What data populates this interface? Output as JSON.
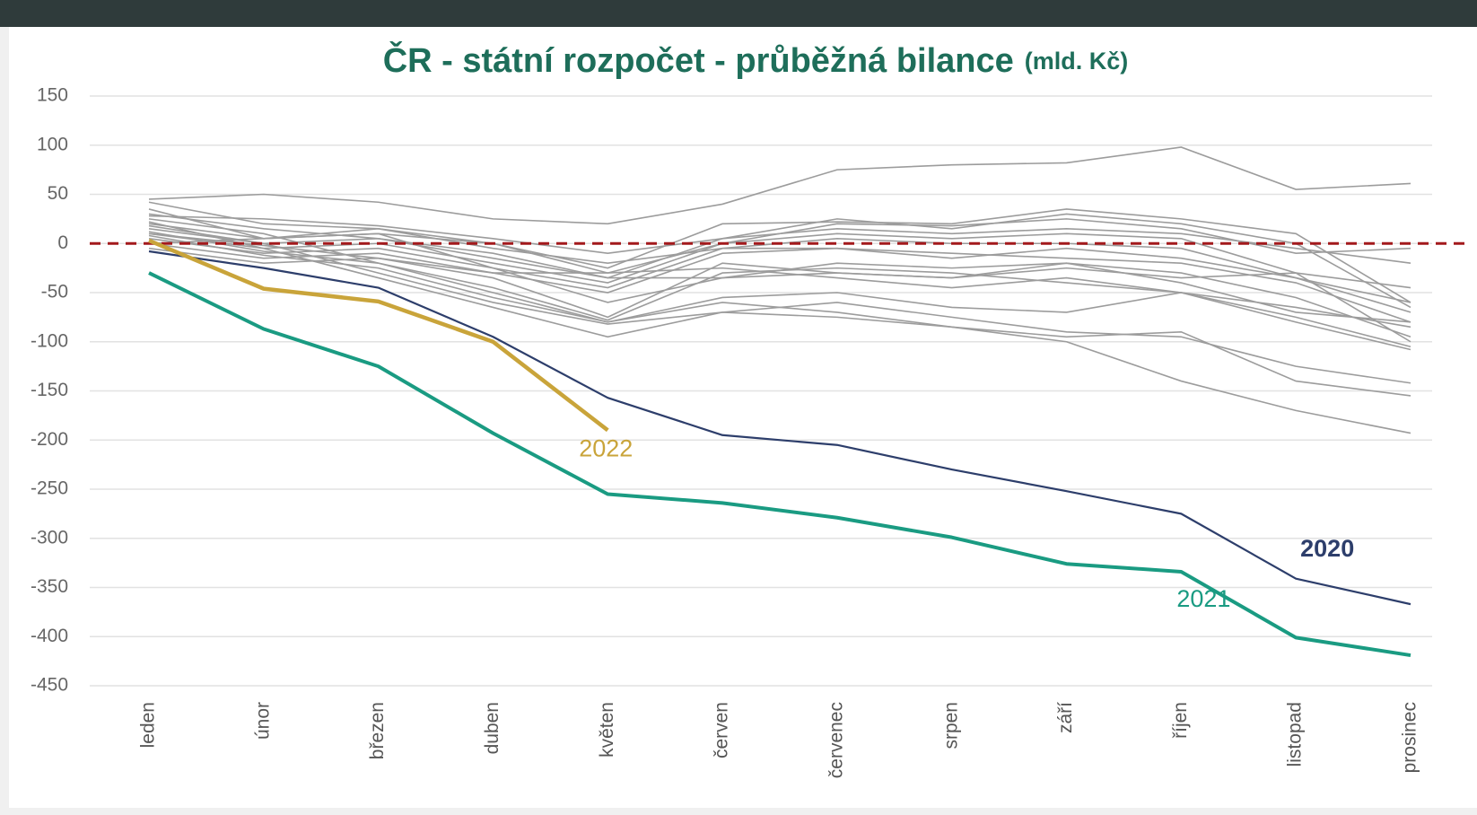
{
  "chart_data": {
    "type": "line",
    "title": "ČR - státní rozpočet - průběžná bilance",
    "unit_label": "(mld. Kč)",
    "categories": [
      "leden",
      "únor",
      "březen",
      "duben",
      "květen",
      "červen",
      "červenec",
      "srpen",
      "září",
      "říjen",
      "listopad",
      "prosinec"
    ],
    "ylim": [
      -450,
      150
    ],
    "yticks": [
      150,
      100,
      50,
      0,
      -50,
      -100,
      -150,
      -200,
      -250,
      -300,
      -350,
      -400,
      -450
    ],
    "grid": true,
    "zero_line": {
      "value": 0,
      "color": "#a3191c"
    },
    "background_series_color": "#9c9c9c",
    "background_series": [
      [
        45,
        50,
        42,
        25,
        20,
        40,
        75,
        80,
        82,
        98,
        55,
        61
      ],
      [
        42,
        20,
        15,
        0,
        -25,
        20,
        22,
        20,
        35,
        25,
        10,
        -60
      ],
      [
        28,
        25,
        18,
        5,
        -10,
        5,
        25,
        15,
        30,
        20,
        0,
        -65
      ],
      [
        20,
        5,
        10,
        0,
        -30,
        0,
        20,
        18,
        25,
        15,
        -10,
        -5
      ],
      [
        15,
        0,
        5,
        -10,
        -35,
        5,
        15,
        10,
        15,
        10,
        -5,
        -20
      ],
      [
        10,
        -5,
        0,
        -20,
        -40,
        0,
        10,
        5,
        10,
        5,
        -30,
        -100
      ],
      [
        5,
        -10,
        -5,
        -25,
        -45,
        -5,
        5,
        0,
        0,
        -5,
        -35,
        -60
      ],
      [
        0,
        -15,
        -10,
        -30,
        -50,
        -10,
        -5,
        -10,
        -15,
        -20,
        -40,
        -80
      ],
      [
        -5,
        -20,
        -15,
        -35,
        -75,
        -20,
        -30,
        -35,
        -20,
        -30,
        -55,
        -95
      ],
      [
        12,
        -8,
        -20,
        -45,
        -78,
        -30,
        -25,
        -30,
        -40,
        -50,
        -65,
        -85
      ],
      [
        8,
        -12,
        -25,
        -55,
        -80,
        -55,
        -50,
        -65,
        -70,
        -50,
        -75,
        -105
      ],
      [
        18,
        0,
        -30,
        -60,
        -82,
        -70,
        -60,
        -75,
        -90,
        -95,
        -125,
        -142
      ],
      [
        22,
        -5,
        -35,
        -65,
        -95,
        -70,
        -75,
        -85,
        -100,
        -140,
        -170,
        -193
      ],
      [
        25,
        10,
        -20,
        -50,
        -80,
        -60,
        -70,
        -85,
        -95,
        -90,
        -140,
        -155
      ],
      [
        30,
        15,
        5,
        -15,
        -35,
        -35,
        -30,
        -35,
        -25,
        -35,
        -30,
        -45
      ],
      [
        0,
        5,
        10,
        -25,
        -60,
        -35,
        -20,
        -25,
        -20,
        -40,
        -70,
        -80
      ],
      [
        35,
        5,
        15,
        -5,
        -20,
        -5,
        -5,
        -15,
        -5,
        -15,
        -35,
        -70
      ],
      [
        10,
        -2,
        -15,
        -30,
        -30,
        -25,
        -35,
        -45,
        -35,
        -50,
        -80,
        -108
      ]
    ],
    "series": [
      {
        "name": "2020",
        "color": "#2d3e6b",
        "values": [
          -8,
          -25,
          -45,
          -95,
          -157,
          -195,
          -205,
          -230,
          -252,
          -275,
          -341,
          -367
        ]
      },
      {
        "name": "2021",
        "color": "#1a9b82",
        "values": [
          -30,
          -87,
          -125,
          -193,
          -255,
          -264,
          -279,
          -299,
          -326,
          -334,
          -401,
          -419
        ]
      },
      {
        "name": "2022",
        "color": "#c9a43a",
        "values": [
          3,
          -46,
          -59,
          -100,
          -190,
          null,
          null,
          null,
          null,
          null,
          null,
          null
        ]
      }
    ]
  }
}
